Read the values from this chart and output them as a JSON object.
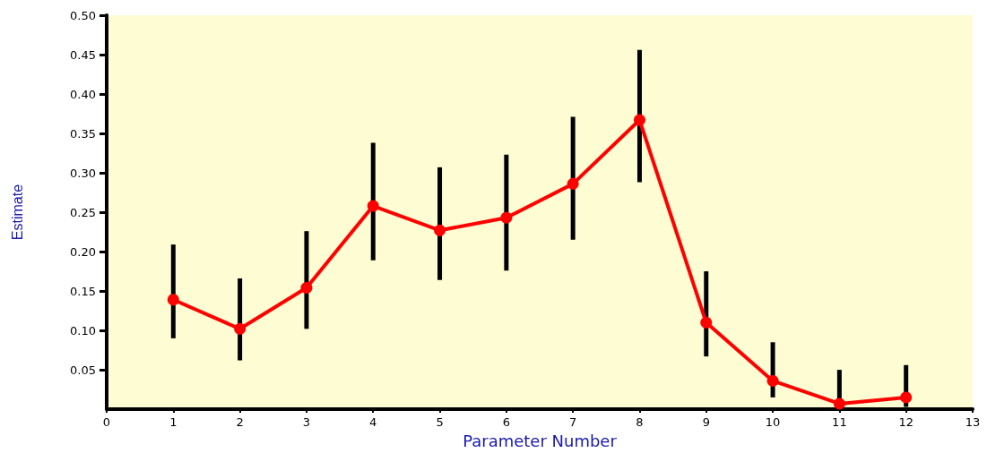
{
  "chart_data": {
    "type": "line",
    "xlabel": "Parameter Number",
    "ylabel": "Estimate",
    "x": [
      1,
      2,
      3,
      4,
      5,
      6,
      7,
      8,
      9,
      10,
      11,
      12
    ],
    "series": [
      {
        "color": "#ff0000",
        "values": [
          0.139,
          0.102,
          0.154,
          0.258,
          0.227,
          0.243,
          0.286,
          0.367,
          0.11,
          0.036,
          0.007,
          0.015
        ],
        "errors": [
          [
            0.09,
            0.209
          ],
          [
            0.062,
            0.166
          ],
          [
            0.102,
            0.226
          ],
          [
            0.189,
            0.338
          ],
          [
            0.164,
            0.307
          ],
          [
            0.176,
            0.323
          ],
          [
            0.215,
            0.371
          ],
          [
            0.288,
            0.456
          ],
          [
            0.067,
            0.175
          ],
          [
            0.015,
            0.085
          ],
          [
            0.002,
            0.05
          ],
          [
            0.003,
            0.056
          ]
        ]
      }
    ],
    "xlim": [
      0,
      13
    ],
    "xticks": [
      0,
      1,
      2,
      3,
      4,
      5,
      6,
      7,
      8,
      9,
      10,
      11,
      12,
      13
    ],
    "ylim": [
      0,
      0.5
    ],
    "yticks": [
      {
        "value": 0.05,
        "label": "0.05"
      },
      {
        "value": 0.1,
        "label": "0.10"
      },
      {
        "value": 0.15,
        "label": "0.15"
      },
      {
        "value": 0.2,
        "label": "0.20"
      },
      {
        "value": 0.25,
        "label": "0.25"
      },
      {
        "value": 0.3,
        "label": "0.30"
      },
      {
        "value": 0.35,
        "label": "0.35"
      },
      {
        "value": 0.4,
        "label": "0.40"
      },
      {
        "value": 0.45,
        "label": "0.45"
      },
      {
        "value": 0.5,
        "label": "0.50"
      }
    ],
    "grid": false,
    "marker": "circle",
    "line_style": "solid"
  }
}
